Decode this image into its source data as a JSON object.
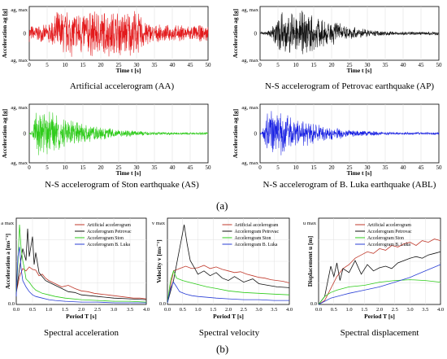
{
  "panel_letters": [
    "(a)",
    "(b)"
  ],
  "chart_data": [
    {
      "type": "line",
      "id": "AA",
      "caption": "Artificial accelerogram (AA)",
      "xlabel": "Time t [s]",
      "ylabel": "Acceleration ag [g]",
      "ytop": "ag, max",
      "ymid": "0",
      "xlim": [
        0,
        50
      ],
      "xticks": [
        0,
        5,
        10,
        15,
        20,
        25,
        30,
        35,
        40,
        45,
        50
      ],
      "color": "#e31a1c",
      "envelope": {
        "rise_end": 8,
        "decay_start": 30,
        "end": 50,
        "amp": 1.0,
        "noise": 0.35
      },
      "series": [
        {
          "values": "synthetic"
        }
      ]
    },
    {
      "type": "line",
      "id": "AP",
      "caption": "N-S accelerogram of Petrovac earthquake (AP)",
      "xlabel": "Time t [s]",
      "ylabel": "Acceleration ag [g]",
      "ytop": "ag, max",
      "ymid": "0",
      "xlim": [
        0,
        50
      ],
      "xticks": [
        0,
        5,
        10,
        15,
        20,
        25,
        30,
        35,
        40,
        45,
        50
      ],
      "color": "#111111",
      "envelope": {
        "rise_end": 6,
        "decay_start": 15,
        "end": 50,
        "amp": 0.95,
        "noise": 0.08
      },
      "series": [
        {
          "values": "synthetic"
        }
      ]
    },
    {
      "type": "line",
      "id": "AS",
      "caption": "N-S accelerogram of Ston earthquake (AS)",
      "xlabel": "Time t [s]",
      "ylabel": "Acceleration ag [g]",
      "ytop": "ag, max",
      "ymid": "0",
      "xlim": [
        0,
        50
      ],
      "xticks": [
        0,
        5,
        10,
        15,
        20,
        25,
        30,
        35,
        40,
        45,
        50
      ],
      "color": "#2ecc1a",
      "envelope": {
        "rise_end": 2,
        "decay_start": 4,
        "end": 50,
        "amp": 1.0,
        "noise": 0.05
      },
      "series": [
        {
          "values": "synthetic"
        }
      ]
    },
    {
      "type": "line",
      "id": "ABL",
      "caption": "N-S accelerogram of B. Luka earthquake (ABL)",
      "xlabel": "Time t [s]",
      "ylabel": "Acceleration ag [g]",
      "ytop": "ag, max",
      "ymid": "0",
      "xlim": [
        0,
        50
      ],
      "xticks": [
        0,
        5,
        10,
        15,
        20,
        25,
        30,
        35,
        40,
        45,
        50
      ],
      "color": "#1a22e3",
      "envelope": {
        "rise_end": 2,
        "decay_start": 4,
        "end": 50,
        "amp": 1.0,
        "noise": 0.05
      },
      "series": [
        {
          "values": "synthetic"
        }
      ]
    },
    {
      "type": "line",
      "id": "SA",
      "caption": "Spectral acceleration",
      "xlabel": "Period T [s]",
      "ylabel": "Acceleration a [ms⁻²]",
      "ytop": "a max",
      "ybottom": "0.0",
      "xlim": [
        0,
        4
      ],
      "xticks": [
        "0.0",
        "0.5",
        "1.0",
        "1.5",
        "2.0",
        "2.5",
        "3.0",
        "3.5",
        "4.0"
      ],
      "legend": [
        "Artificial accelerogram",
        "Accelerogram Petrovac",
        "Accelerogram Ston",
        "Accelerogram B. Luka"
      ],
      "legend_position": "top-right",
      "series": [
        {
          "name": "Artificial accelerogram",
          "color": "#c0392b",
          "x": [
            0,
            0.1,
            0.2,
            0.3,
            0.4,
            0.5,
            0.6,
            0.7,
            0.8,
            0.9,
            1.0,
            1.2,
            1.4,
            1.6,
            1.8,
            2.0,
            2.2,
            2.4,
            2.6,
            2.8,
            3.0,
            3.2,
            3.4,
            3.6,
            3.8,
            4.0
          ],
          "y": [
            0.15,
            0.35,
            0.45,
            0.42,
            0.47,
            0.44,
            0.43,
            0.36,
            0.38,
            0.33,
            0.3,
            0.26,
            0.22,
            0.24,
            0.2,
            0.17,
            0.16,
            0.14,
            0.13,
            0.12,
            0.11,
            0.1,
            0.09,
            0.08,
            0.08,
            0.07
          ]
        },
        {
          "name": "Accelerogram Petrovac",
          "color": "#111111",
          "x": [
            0,
            0.1,
            0.2,
            0.3,
            0.35,
            0.4,
            0.5,
            0.55,
            0.6,
            0.7,
            0.8,
            0.9,
            1.0,
            1.2,
            1.4,
            1.6,
            1.8,
            2.0,
            2.5,
            3.0,
            3.5,
            4.0
          ],
          "y": [
            0.15,
            0.45,
            0.7,
            0.55,
            0.95,
            0.6,
            0.85,
            0.5,
            0.65,
            0.4,
            0.35,
            0.3,
            0.28,
            0.24,
            0.2,
            0.16,
            0.15,
            0.12,
            0.1,
            0.08,
            0.07,
            0.06
          ]
        },
        {
          "name": "Accelerogram Ston",
          "color": "#2ecc1a",
          "x": [
            0,
            0.05,
            0.1,
            0.15,
            0.2,
            0.25,
            0.3,
            0.4,
            0.5,
            0.6,
            0.8,
            1.0,
            1.2,
            1.5,
            2.0,
            2.5,
            3.0,
            3.5,
            4.0
          ],
          "y": [
            0.15,
            0.5,
            1.0,
            0.7,
            0.55,
            0.45,
            0.32,
            0.28,
            0.22,
            0.18,
            0.14,
            0.12,
            0.1,
            0.08,
            0.06,
            0.05,
            0.04,
            0.04,
            0.03
          ]
        },
        {
          "name": "Accelerogram B. Luka",
          "color": "#2a3fd6",
          "x": [
            0,
            0.05,
            0.1,
            0.15,
            0.2,
            0.3,
            0.4,
            0.5,
            0.6,
            0.8,
            1.0,
            1.2,
            1.5,
            2.0,
            2.5,
            3.0,
            3.5,
            4.0
          ],
          "y": [
            0.1,
            0.6,
            0.72,
            0.45,
            0.3,
            0.22,
            0.16,
            0.12,
            0.1,
            0.08,
            0.06,
            0.05,
            0.04,
            0.03,
            0.03,
            0.02,
            0.02,
            0.02
          ]
        }
      ]
    },
    {
      "type": "line",
      "id": "SV",
      "caption": "Spectral velocity",
      "xlabel": "Period T [s]",
      "ylabel": "Velocity v [ms⁻¹]",
      "ytop": "v max",
      "ybottom": "0.0",
      "xlim": [
        0,
        4
      ],
      "xticks": [
        "0.0",
        "0.5",
        "1.0",
        "1.5",
        "2.0",
        "2.5",
        "3.0",
        "3.5",
        "4.0"
      ],
      "legend": [
        "Artificial accelerogram",
        "Accelerogram Petrovac",
        "Accelerogram Ston",
        "Accelerogram B. Luka"
      ],
      "legend_position": "top-right",
      "series": [
        {
          "name": "Artificial accelerogram",
          "color": "#c0392b",
          "x": [
            0,
            0.2,
            0.4,
            0.6,
            0.8,
            1.0,
            1.2,
            1.4,
            1.6,
            1.8,
            2.0,
            2.2,
            2.4,
            2.6,
            2.8,
            3.0,
            3.2,
            3.4,
            3.6,
            3.8,
            4.0
          ],
          "y": [
            0.02,
            0.42,
            0.45,
            0.48,
            0.45,
            0.46,
            0.49,
            0.45,
            0.47,
            0.44,
            0.42,
            0.4,
            0.41,
            0.38,
            0.36,
            0.34,
            0.33,
            0.31,
            0.3,
            0.29,
            0.27
          ]
        },
        {
          "name": "Accelerogram Petrovac",
          "color": "#111111",
          "x": [
            0,
            0.2,
            0.35,
            0.45,
            0.55,
            0.65,
            0.75,
            0.9,
            1.0,
            1.2,
            1.4,
            1.6,
            1.8,
            2.0,
            2.2,
            2.5,
            2.8,
            3.0,
            3.3,
            3.6,
            4.0
          ],
          "y": [
            0.02,
            0.3,
            0.6,
            0.8,
            1.0,
            0.75,
            0.55,
            0.45,
            0.38,
            0.42,
            0.36,
            0.4,
            0.33,
            0.3,
            0.35,
            0.28,
            0.32,
            0.26,
            0.24,
            0.22,
            0.21
          ]
        },
        {
          "name": "Accelerogram Ston",
          "color": "#2ecc1a",
          "x": [
            0,
            0.1,
            0.2,
            0.3,
            0.5,
            0.7,
            1.0,
            1.3,
            1.6,
            2.0,
            2.5,
            3.0,
            3.5,
            4.0
          ],
          "y": [
            0.02,
            0.3,
            0.42,
            0.33,
            0.3,
            0.28,
            0.25,
            0.22,
            0.2,
            0.17,
            0.15,
            0.14,
            0.13,
            0.12
          ]
        },
        {
          "name": "Accelerogram B. Luka",
          "color": "#2a3fd6",
          "x": [
            0,
            0.1,
            0.2,
            0.3,
            0.4,
            0.6,
            0.8,
            1.0,
            1.3,
            1.6,
            2.0,
            2.5,
            3.0,
            3.5,
            4.0
          ],
          "y": [
            0.02,
            0.2,
            0.28,
            0.22,
            0.16,
            0.13,
            0.11,
            0.1,
            0.09,
            0.08,
            0.07,
            0.06,
            0.06,
            0.05,
            0.05
          ]
        }
      ]
    },
    {
      "type": "line",
      "id": "SD",
      "caption": "Spectral displacement",
      "xlabel": "Period T [s]",
      "ylabel": "Displacement u [m]",
      "ytop": "u max",
      "ybottom": "0.0",
      "xlim": [
        0,
        4
      ],
      "xticks": [
        "0.0",
        "0.5",
        "1.0",
        "1.5",
        "2.0",
        "2.5",
        "3.0",
        "3.5",
        "4.0"
      ],
      "legend": [
        "Artificial accelerogram",
        "Accelerogram Petrovac",
        "Accelerogram Ston",
        "Accelerogram B. Luka"
      ],
      "legend_position": "top-left",
      "series": [
        {
          "name": "Artificial accelerogram",
          "color": "#c0392b",
          "x": [
            0,
            0.2,
            0.4,
            0.6,
            0.8,
            1.0,
            1.2,
            1.4,
            1.6,
            1.8,
            2.0,
            2.2,
            2.4,
            2.6,
            2.8,
            3.0,
            3.2,
            3.4,
            3.6,
            3.8,
            4.0
          ],
          "y": [
            0.0,
            0.05,
            0.2,
            0.35,
            0.45,
            0.5,
            0.58,
            0.62,
            0.66,
            0.64,
            0.7,
            0.68,
            0.74,
            0.72,
            0.76,
            0.78,
            0.74,
            0.8,
            0.78,
            0.82,
            0.8
          ]
        },
        {
          "name": "Accelerogram Petrovac",
          "color": "#111111",
          "x": [
            0,
            0.2,
            0.4,
            0.5,
            0.6,
            0.7,
            0.8,
            1.0,
            1.2,
            1.4,
            1.6,
            1.8,
            2.0,
            2.2,
            2.4,
            2.6,
            2.8,
            3.0,
            3.2,
            3.4,
            3.6,
            3.8,
            4.0
          ],
          "y": [
            0.0,
            0.1,
            0.48,
            0.35,
            0.52,
            0.3,
            0.45,
            0.4,
            0.55,
            0.38,
            0.5,
            0.42,
            0.46,
            0.48,
            0.45,
            0.52,
            0.55,
            0.58,
            0.6,
            0.58,
            0.62,
            0.64,
            0.66
          ]
        },
        {
          "name": "Accelerogram Ston",
          "color": "#2ecc1a",
          "x": [
            0,
            0.2,
            0.4,
            0.6,
            0.8,
            1.0,
            1.5,
            2.0,
            2.5,
            3.0,
            3.5,
            4.0
          ],
          "y": [
            0.0,
            0.1,
            0.15,
            0.18,
            0.2,
            0.22,
            0.24,
            0.28,
            0.3,
            0.31,
            0.3,
            0.28
          ]
        },
        {
          "name": "Accelerogram B. Luka",
          "color": "#2a3fd6",
          "x": [
            0,
            0.2,
            0.4,
            0.6,
            0.8,
            1.0,
            1.5,
            2.0,
            2.5,
            3.0,
            3.5,
            4.0
          ],
          "y": [
            0.0,
            0.04,
            0.08,
            0.1,
            0.12,
            0.14,
            0.18,
            0.22,
            0.28,
            0.34,
            0.42,
            0.5
          ]
        }
      ]
    }
  ]
}
